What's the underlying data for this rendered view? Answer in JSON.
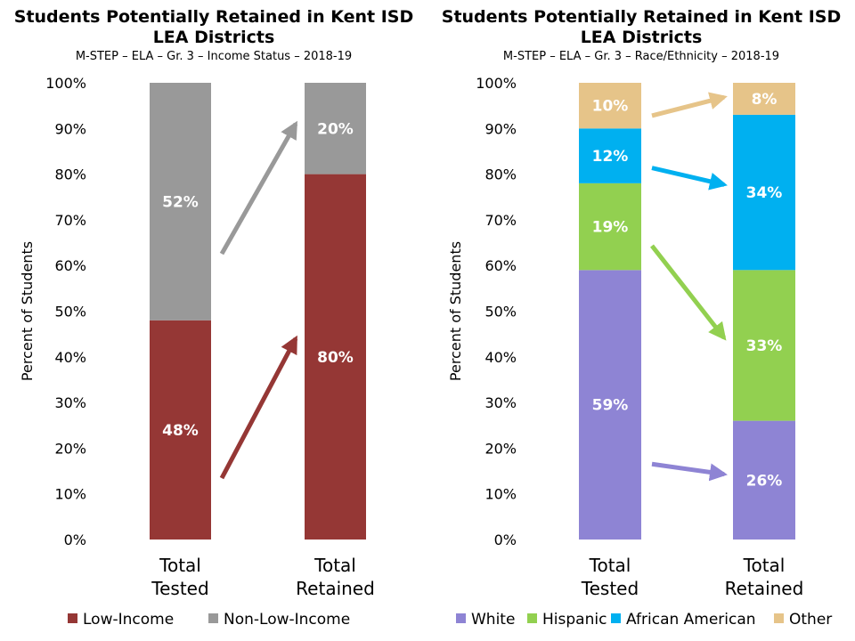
{
  "chart_data": [
    {
      "type": "bar",
      "stacked": true,
      "title": "Students Potentially Retained in Kent ISD LEA Districts",
      "subtitle": "M-STEP – ELA – Gr. 3 – Income Status – 2018-19",
      "ylabel": "Percent of Students",
      "ylim": [
        0,
        100
      ],
      "yticks": [
        "0%",
        "10%",
        "20%",
        "30%",
        "40%",
        "50%",
        "60%",
        "70%",
        "80%",
        "90%",
        "100%"
      ],
      "categories": [
        [
          "Total",
          "Tested"
        ],
        [
          "Total",
          "Retained"
        ]
      ],
      "series": [
        {
          "name": "Low-Income",
          "values": [
            48,
            80
          ],
          "labels": [
            "48%",
            "80%"
          ],
          "color": "#953735"
        },
        {
          "name": "Non-Low-Income",
          "values": [
            52,
            20
          ],
          "labels": [
            "52%",
            "20%"
          ],
          "color": "#999999"
        }
      ],
      "legend": "bottom",
      "grid": false
    },
    {
      "type": "bar",
      "stacked": true,
      "title": "Students Potentially Retained in Kent ISD LEA Districts",
      "subtitle": "M-STEP – ELA – Gr. 3 – Race/Ethnicity – 2018-19",
      "ylabel": "Percent of Students",
      "ylim": [
        0,
        100
      ],
      "yticks": [
        "0%",
        "10%",
        "20%",
        "30%",
        "40%",
        "50%",
        "60%",
        "70%",
        "80%",
        "90%",
        "100%"
      ],
      "categories": [
        [
          "Total",
          "Tested"
        ],
        [
          "Total",
          "Retained"
        ]
      ],
      "series": [
        {
          "name": "White",
          "values": [
            59,
            26
          ],
          "labels": [
            "59%",
            "26%"
          ],
          "color": "#8E84D4"
        },
        {
          "name": "Hispanic",
          "values": [
            19,
            33
          ],
          "labels": [
            "19%",
            "33%"
          ],
          "color": "#92D050"
        },
        {
          "name": "African American",
          "values": [
            12,
            34
          ],
          "labels": [
            "12%",
            "34%"
          ],
          "color": "#00B0F0"
        },
        {
          "name": "Other",
          "values": [
            10,
            8
          ],
          "labels": [
            "10%",
            "8%"
          ],
          "color": "#E6C489"
        }
      ],
      "legend": "bottom",
      "grid": false
    }
  ]
}
